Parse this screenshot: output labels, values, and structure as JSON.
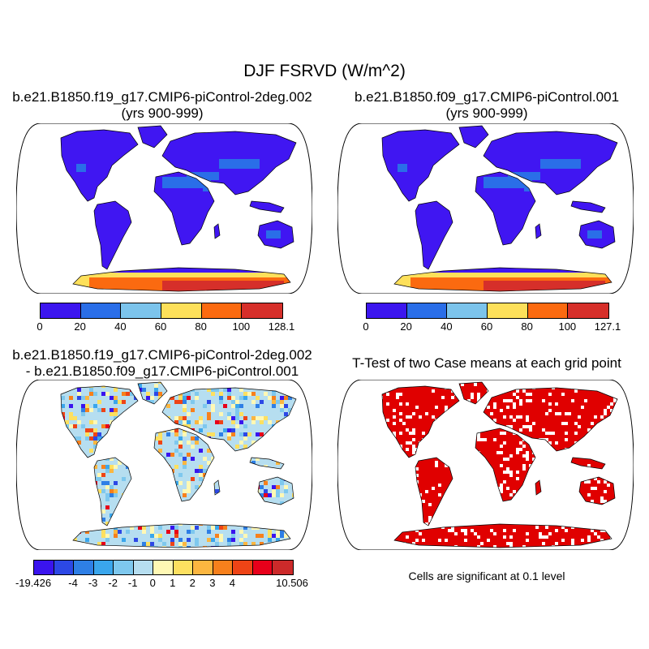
{
  "title": "DJF FSRVD (W/m^2)",
  "colors": {
    "ocean": "#ffffff",
    "land_base": "#4016f2",
    "coastline": "#000000",
    "significant": "#e00000"
  },
  "panels": [
    {
      "title_line1": "b.e21.B1850.f19_g17.CMIP6-piControl-2deg.002",
      "title_line2": "(yrs 900-999)",
      "colorbar": {
        "colors": [
          "#3c16ef",
          "#2a6ee8",
          "#7cc4ec",
          "#fde05a",
          "#fb6a10",
          "#d62f2a"
        ],
        "labels": [
          "0",
          "20",
          "40",
          "60",
          "80",
          "100",
          "128.1"
        ]
      }
    },
    {
      "title_line1": "b.e21.B1850.f09_g17.CMIP6-piControl.001",
      "title_line2": "(yrs 900-999)",
      "colorbar": {
        "colors": [
          "#3c16ef",
          "#2a6ee8",
          "#7cc4ec",
          "#fde05a",
          "#fb6a10",
          "#d62f2a"
        ],
        "labels": [
          "0",
          "20",
          "40",
          "60",
          "80",
          "100",
          "127.1"
        ]
      }
    },
    {
      "title_line1": "b.e21.B1850.f19_g17.CMIP6-piControl-2deg.002",
      "title_line2": "- b.e21.B1850.f09_g17.CMIP6-piControl.001",
      "colorbar": {
        "colors": [
          "#3a14ee",
          "#2c48e6",
          "#2e7fe6",
          "#3aa6ec",
          "#7ec8ee",
          "#b6def0",
          "#fff8b4",
          "#fde060",
          "#fbb640",
          "#f7801c",
          "#ee4416",
          "#e8001a",
          "#cc2a2a"
        ],
        "labels": [
          "-19.426",
          "-4",
          "-3",
          "-2",
          "-1",
          "0",
          "1",
          "2",
          "3",
          "4",
          "10.506"
        ]
      }
    },
    {
      "title_line1": "T-Test of two Case means at each grid point",
      "footnote": "Cells are significant at 0.1 level"
    }
  ]
}
